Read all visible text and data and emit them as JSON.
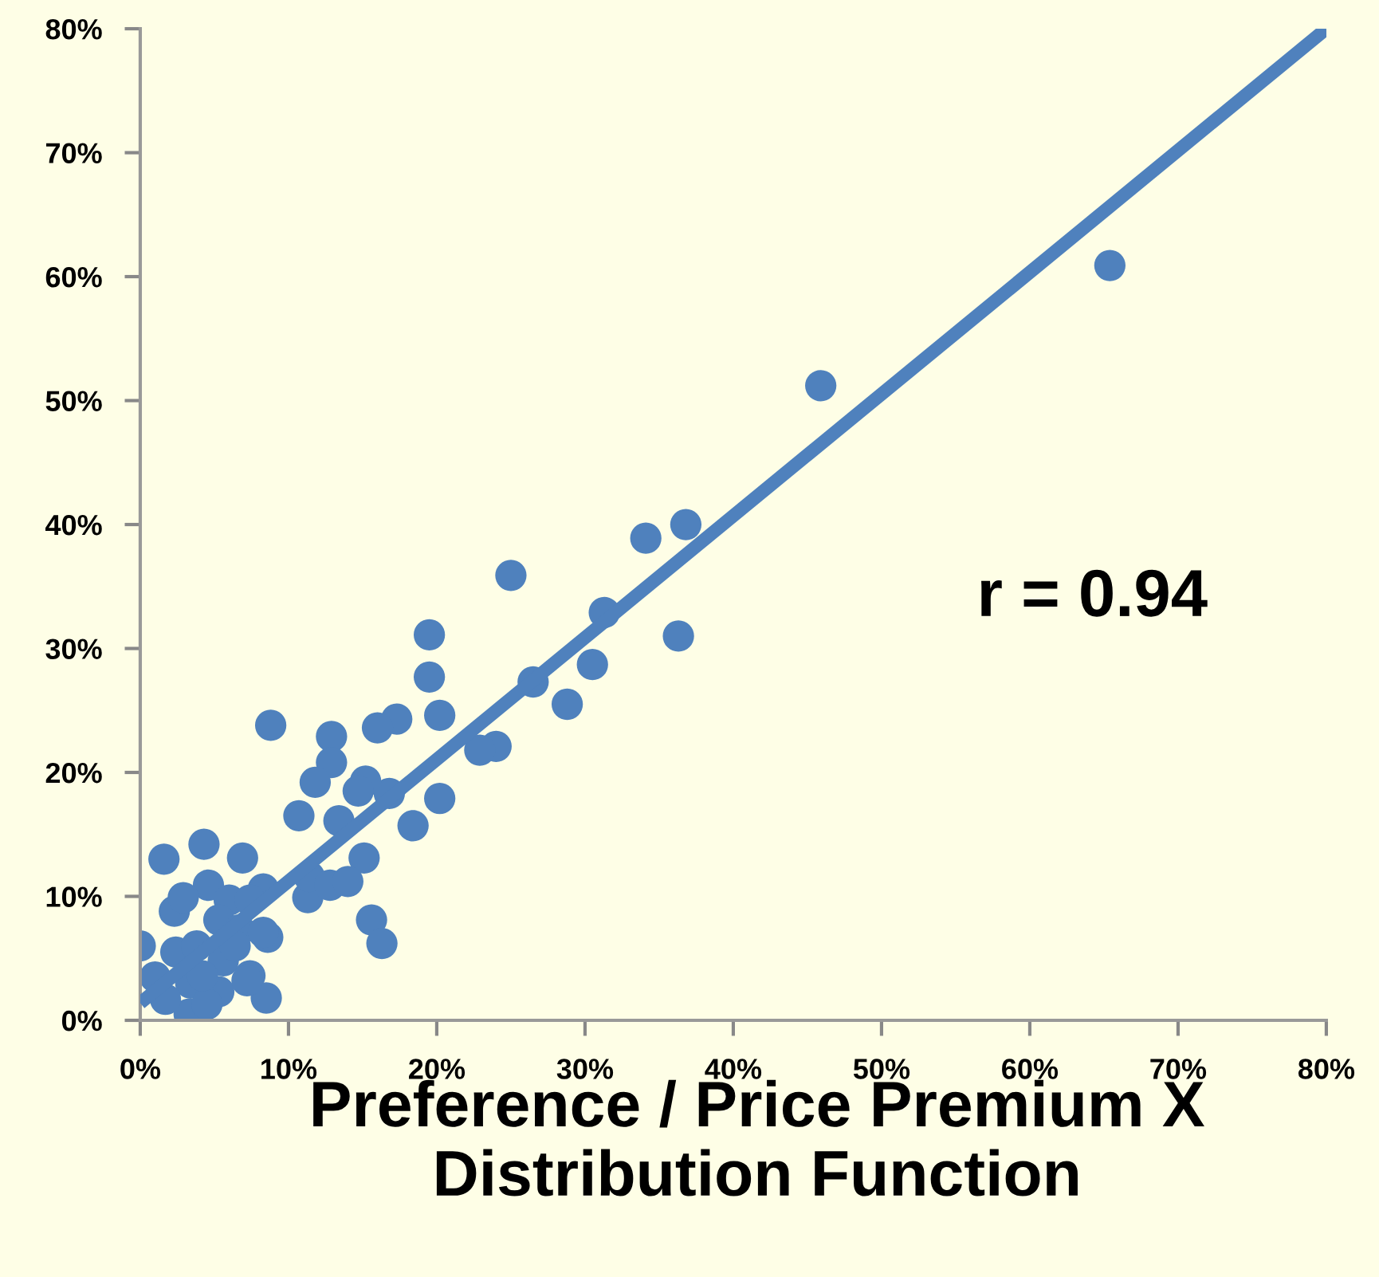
{
  "chart_data": {
    "type": "scatter",
    "xlabel": "Preference / Price Premium X\nDistribution Function",
    "annotations": [
      "r = 0.94"
    ],
    "xlim": [
      0,
      80
    ],
    "ylim": [
      0,
      80
    ],
    "xticks": [
      {
        "value": 0,
        "label": "0%"
      },
      {
        "value": 10,
        "label": "10%"
      },
      {
        "value": 20,
        "label": "20%"
      },
      {
        "value": 30,
        "label": "30%"
      },
      {
        "value": 40,
        "label": "40%"
      },
      {
        "value": 50,
        "label": "50%"
      },
      {
        "value": 60,
        "label": "60%"
      },
      {
        "value": 70,
        "label": "70%"
      },
      {
        "value": 80,
        "label": "80%"
      }
    ],
    "yticks": [
      {
        "value": 0,
        "label": "0%"
      },
      {
        "value": 10,
        "label": "10%"
      },
      {
        "value": 20,
        "label": "20%"
      },
      {
        "value": 30,
        "label": "30%"
      },
      {
        "value": 40,
        "label": "40%"
      },
      {
        "value": 50,
        "label": "50%"
      },
      {
        "value": 60,
        "label": "60%"
      },
      {
        "value": 70,
        "label": "70%"
      },
      {
        "value": 80,
        "label": "80%"
      }
    ],
    "grid": false,
    "legend": false,
    "series": [
      {
        "color": "#4f81bd",
        "marker": "circle",
        "x": [
          65.4,
          45.9,
          36.8,
          34.1,
          36.3,
          31.3,
          30.5,
          25.0,
          26.5,
          28.8,
          24.0,
          22.9,
          19.5,
          19.5,
          20.2,
          17.3,
          16.0,
          12.9,
          12.9,
          8.8,
          20.2,
          16.8,
          15.2,
          14.7,
          18.4,
          11.8,
          13.4,
          10.7,
          15.1,
          15.6,
          16.3,
          11.3,
          11.4,
          12.8,
          14.0,
          1.6,
          4.3,
          6.9,
          4.6,
          6.0,
          8.3,
          2.3,
          2.9,
          5.3,
          6.7,
          8.6,
          0.0,
          2.4,
          3.8,
          5.6,
          7.4,
          8.5,
          1.0,
          3.4,
          5.3,
          3.3,
          4.5,
          1.7,
          4.2,
          6.4,
          7.4,
          8.3,
          7.2
        ],
        "values": [
          60.9,
          51.2,
          40.0,
          38.9,
          31.0,
          32.9,
          28.7,
          35.9,
          27.3,
          25.5,
          22.1,
          21.8,
          31.1,
          27.7,
          24.6,
          24.3,
          23.6,
          22.9,
          20.8,
          23.8,
          17.9,
          18.3,
          19.3,
          18.5,
          15.7,
          19.2,
          16.1,
          16.5,
          13.1,
          8.1,
          6.2,
          9.9,
          11.6,
          10.9,
          11.2,
          13.0,
          14.2,
          13.1,
          10.9,
          9.7,
          10.6,
          8.8,
          9.9,
          8.1,
          7.3,
          6.7,
          6.0,
          5.5,
          6.0,
          4.8,
          3.6,
          1.8,
          3.5,
          3.0,
          2.3,
          0.5,
          1.3,
          1.7,
          3.6,
          6.0,
          9.7,
          7.1,
          3.2
        ]
      },
      {
        "type": "line",
        "color": "#4f81bd",
        "marker": "none",
        "line_style": "solid",
        "x": [
          0,
          80
        ],
        "values": [
          1.4,
          80.0
        ]
      }
    ]
  }
}
